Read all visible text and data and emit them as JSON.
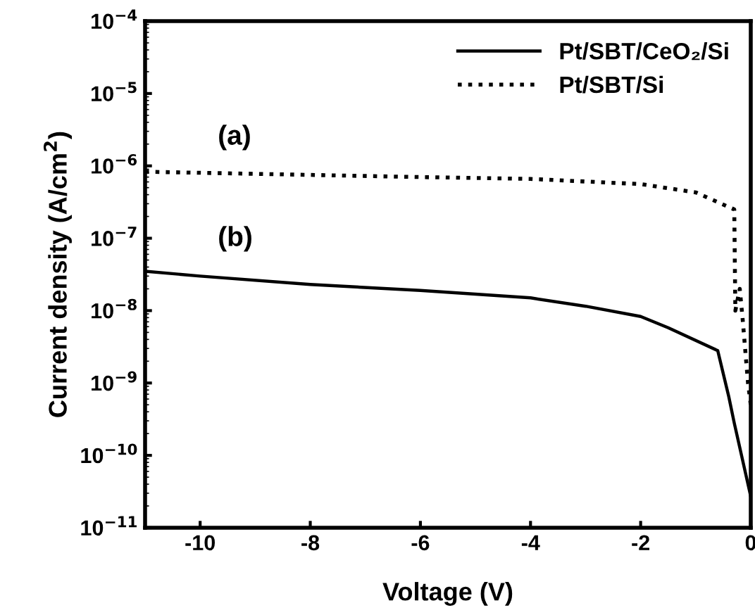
{
  "chart_data": {
    "type": "line",
    "xlabel": "Voltage (V)",
    "ylabel": "Current density (A/cm$^{2}$)",
    "log": "y",
    "xlim": [
      -11,
      0
    ],
    "xticks": [
      -10,
      -8,
      -6,
      -4,
      -2,
      0
    ],
    "ylim": [
      1e-11,
      0.0001
    ],
    "yticks": [
      {
        "value": 1e-11,
        "label": "10$^{−11}$"
      },
      {
        "value": 1e-10,
        "label": "10$^{−10}$"
      },
      {
        "value": 1e-09,
        "label": "10$^{−9}$"
      },
      {
        "value": 1e-08,
        "label": "10$^{−8}$"
      },
      {
        "value": 1e-07,
        "label": "10$^{−7}$"
      },
      {
        "value": 1e-06,
        "label": "10$^{−6}$"
      },
      {
        "value": 1e-05,
        "label": "10$^{−5}$"
      },
      {
        "value": 0.0001,
        "label": "10$^{−4}$"
      }
    ],
    "grid": false,
    "legend": "top right",
    "marker": "none",
    "series": [
      {
        "name": "Pt/SBT/CeO₂/Si",
        "color": "#000000",
        "line_style": "solid",
        "x": [
          -11,
          -10,
          -8,
          -6,
          -4,
          -3,
          -2,
          -1.5,
          -0.6,
          -0.4,
          -0.3,
          0
        ],
        "values": [
          3.5e-08,
          3e-08,
          2.3e-08,
          1.9e-08,
          1.5e-08,
          1.15e-08,
          8.3e-09,
          5.8e-09,
          2.8e-09,
          6.5e-10,
          2.8e-10,
          2.7e-11
        ]
      },
      {
        "name": "Pt/SBT/Si",
        "color": "#000000",
        "line_style": "dotted",
        "x": [
          -11,
          -8,
          -6,
          -4,
          -2,
          -1,
          -0.3,
          -0.28,
          -0.2,
          -0.15,
          -0.05,
          0
        ],
        "values": [
          8.3e-07,
          7.5e-07,
          7e-07,
          6.6e-07,
          5.6e-07,
          4.3e-07,
          2.5e-07,
          1e-08,
          2e-08,
          8e-09,
          1e-09,
          5e-10
        ]
      }
    ],
    "annotations": [
      "(a)",
      "(b)"
    ]
  }
}
